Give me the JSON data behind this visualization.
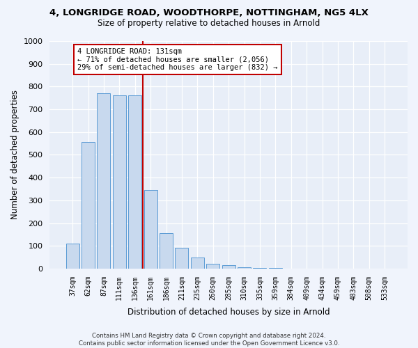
{
  "title1": "4, LONGRIDGE ROAD, WOODTHORPE, NOTTINGHAM, NG5 4LX",
  "title2": "Size of property relative to detached houses in Arnold",
  "xlabel": "Distribution of detached houses by size in Arnold",
  "ylabel": "Number of detached properties",
  "categories": [
    "37sqm",
    "62sqm",
    "87sqm",
    "111sqm",
    "136sqm",
    "161sqm",
    "186sqm",
    "211sqm",
    "235sqm",
    "260sqm",
    "285sqm",
    "310sqm",
    "335sqm",
    "359sqm",
    "384sqm",
    "409sqm",
    "434sqm",
    "459sqm",
    "483sqm",
    "508sqm",
    "533sqm"
  ],
  "values": [
    110,
    555,
    770,
    760,
    760,
    345,
    155,
    90,
    50,
    20,
    15,
    5,
    3,
    2,
    1,
    1,
    1,
    1,
    1,
    1,
    1
  ],
  "bar_color": "#c8d9ee",
  "bar_edge_color": "#5b9bd5",
  "highlight_color": "#c00000",
  "vline_x": 4.5,
  "annotation_text": "4 LONGRIDGE ROAD: 131sqm\n← 71% of detached houses are smaller (2,056)\n29% of semi-detached houses are larger (832) →",
  "footer": "Contains HM Land Registry data © Crown copyright and database right 2024.\nContains public sector information licensed under the Open Government Licence v3.0.",
  "ylim": [
    0,
    1000
  ],
  "yticks": [
    0,
    100,
    200,
    300,
    400,
    500,
    600,
    700,
    800,
    900,
    1000
  ],
  "bg_color": "#e8eef8",
  "fig_bg_color": "#f0f4fc"
}
